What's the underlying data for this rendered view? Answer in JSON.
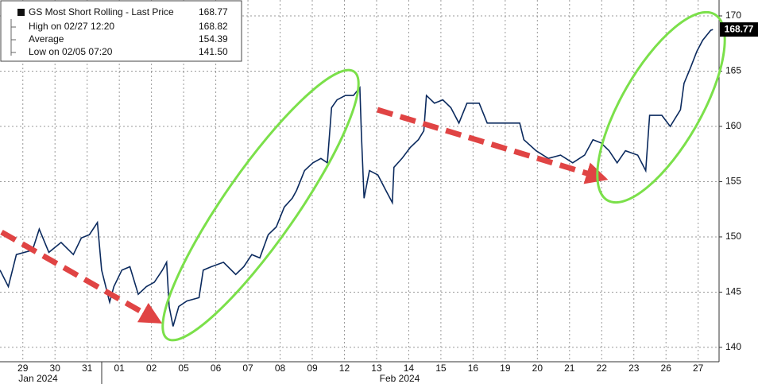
{
  "chart_data": {
    "type": "line",
    "legend": {
      "title": "GS Most Short Rolling - Last Price",
      "last_price": 168.77,
      "rows": [
        {
          "label": "High on 02/27 12:20",
          "value": 168.82
        },
        {
          "label": "Average",
          "value": 154.39
        },
        {
          "label": "Low on 02/05 07:20",
          "value": 141.5
        }
      ]
    },
    "x_groups": [
      "Jan 2024",
      "Feb 2024"
    ],
    "x": [
      -0.71,
      -0.45,
      -0.2,
      0.3,
      0.51,
      0.81,
      1.19,
      1.57,
      1.82,
      2.07,
      2.32,
      2.45,
      2.7,
      2.83,
      3.08,
      3.33,
      3.59,
      3.84,
      4.09,
      4.34,
      4.47,
      4.55,
      4.67,
      4.85,
      5.1,
      5.48,
      5.61,
      5.86,
      6.24,
      6.62,
      6.87,
      7.12,
      7.37,
      7.63,
      7.88,
      8.13,
      8.38,
      8.51,
      8.76,
      9.02,
      9.27,
      9.47,
      9.6,
      9.77,
      10.03,
      10.28,
      10.48,
      10.53,
      10.61,
      10.78,
      11.04,
      11.29,
      11.49,
      11.54,
      11.79,
      12.05,
      12.3,
      12.47,
      12.55,
      12.8,
      13.06,
      13.31,
      13.56,
      13.81,
      14.19,
      14.44,
      15.45,
      15.58,
      15.96,
      16.34,
      16.72,
      17.1,
      17.47,
      17.73,
      17.98,
      18.23,
      18.48,
      18.74,
      19.12,
      19.37,
      19.49,
      19.87,
      20.13,
      20.45,
      20.56,
      20.76,
      20.96,
      21.14,
      21.39,
      21.46
    ],
    "series": [
      {
        "name": "GS Most Short Rolling - Last Price",
        "color": "#0b2a5e",
        "values": [
          147.0,
          145.5,
          148.4,
          148.8,
          150.7,
          148.6,
          149.5,
          148.4,
          149.9,
          150.2,
          151.3,
          147.0,
          144.1,
          145.5,
          147.0,
          147.3,
          144.8,
          145.5,
          145.9,
          147.0,
          147.7,
          143.7,
          141.9,
          143.7,
          144.2,
          144.5,
          147.0,
          147.3,
          147.7,
          146.6,
          147.3,
          148.4,
          148.1,
          150.2,
          150.9,
          152.7,
          153.5,
          154.2,
          156.0,
          156.7,
          157.1,
          156.7,
          161.7,
          162.4,
          162.8,
          162.8,
          163.5,
          159.2,
          153.5,
          156.0,
          155.6,
          154.2,
          153.1,
          156.3,
          157.1,
          158.1,
          158.8,
          159.6,
          162.8,
          162.1,
          162.4,
          161.7,
          160.3,
          162.1,
          162.1,
          160.3,
          160.3,
          158.8,
          157.8,
          157.1,
          157.4,
          156.7,
          157.4,
          158.8,
          158.5,
          157.8,
          156.7,
          157.8,
          157.4,
          156.0,
          161.0,
          161.0,
          160.0,
          161.5,
          163.9,
          165.3,
          166.8,
          167.8,
          168.7,
          168.77
        ]
      }
    ],
    "xlim": [
      -0.71,
      21.65
    ],
    "xticks": [
      {
        "value": 0,
        "label": "29"
      },
      {
        "value": 1,
        "label": "30"
      },
      {
        "value": 2,
        "label": "31"
      },
      {
        "value": 3,
        "label": "01"
      },
      {
        "value": 4,
        "label": "02"
      },
      {
        "value": 5,
        "label": "05"
      },
      {
        "value": 6,
        "label": "06"
      },
      {
        "value": 7,
        "label": "07"
      },
      {
        "value": 8,
        "label": "08"
      },
      {
        "value": 9,
        "label": "09"
      },
      {
        "value": 10,
        "label": "12"
      },
      {
        "value": 11,
        "label": "13"
      },
      {
        "value": 12,
        "label": "14"
      },
      {
        "value": 13,
        "label": "15"
      },
      {
        "value": 14,
        "label": "16"
      },
      {
        "value": 15,
        "label": "19"
      },
      {
        "value": 16,
        "label": "20"
      },
      {
        "value": 17,
        "label": "21"
      },
      {
        "value": 18,
        "label": "22"
      },
      {
        "value": 19,
        "label": "23"
      },
      {
        "value": 20,
        "label": "26"
      },
      {
        "value": 21,
        "label": "27"
      }
    ],
    "ylim": [
      138.7,
      171.44
    ],
    "yticks": [
      140,
      145,
      150,
      155,
      160,
      165,
      170
    ],
    "grid": true
  }
}
